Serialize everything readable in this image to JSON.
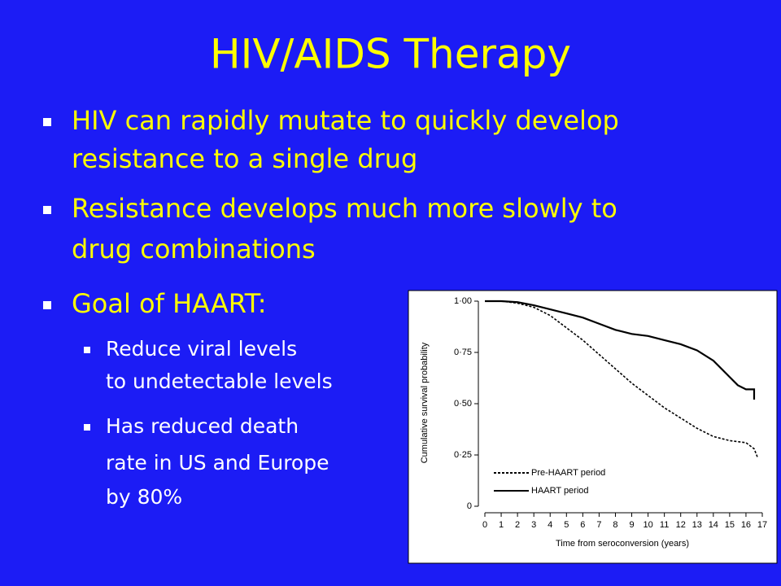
{
  "slide": {
    "title": "HIV/AIDS Therapy",
    "bullets": [
      {
        "lines": [
          "HIV can rapidly mutate to quickly develop",
          "resistance to a single drug"
        ]
      },
      {
        "lines": [
          "Resistance develops much more slowly to",
          "drug combinations"
        ]
      },
      {
        "lines": [
          "Goal of HAART:"
        ],
        "sub": [
          {
            "lines": [
              "Reduce viral levels",
              "to undetectable levels"
            ]
          },
          {
            "lines": [
              "Has reduced death",
              "rate in US and Europe",
              "by 80%"
            ]
          }
        ]
      }
    ]
  },
  "chart_data": {
    "type": "line",
    "xlabel": "Time from seroconversion (years)",
    "ylabel": "Cumulative survival probability",
    "xlim": [
      0,
      17
    ],
    "ylim": [
      0,
      1
    ],
    "xticks": [
      0,
      1,
      2,
      3,
      4,
      5,
      6,
      7,
      8,
      9,
      10,
      11,
      12,
      13,
      14,
      15,
      16,
      17
    ],
    "yticks": [
      0,
      {
        "value": 0.25,
        "label": "0·25"
      },
      {
        "value": 0.5,
        "label": "0·50"
      },
      {
        "value": 0.75,
        "label": "0·75"
      },
      {
        "value": 1,
        "label": "1·00"
      }
    ],
    "legend": "lower left",
    "series": [
      {
        "name": "Pre-HAART period",
        "color": "#000000",
        "dash": "dashed",
        "x": [
          0,
          1,
          2,
          3,
          4,
          5,
          6,
          7,
          8,
          9,
          10,
          11,
          12,
          13,
          14,
          15,
          16,
          16.5,
          16.7
        ],
        "values": [
          1.0,
          1.0,
          0.99,
          0.97,
          0.93,
          0.87,
          0.81,
          0.74,
          0.67,
          0.6,
          0.54,
          0.48,
          0.43,
          0.38,
          0.34,
          0.32,
          0.31,
          0.28,
          0.24
        ]
      },
      {
        "name": "HAART period",
        "color": "#000000",
        "dash": "solid",
        "x": [
          0,
          1,
          2,
          3,
          4,
          5,
          6,
          7,
          8,
          9,
          10,
          11,
          12,
          13,
          14,
          15,
          15.5,
          16,
          16.5,
          16.5
        ],
        "values": [
          1.0,
          1.0,
          0.995,
          0.98,
          0.96,
          0.94,
          0.92,
          0.89,
          0.86,
          0.84,
          0.83,
          0.81,
          0.79,
          0.76,
          0.71,
          0.63,
          0.59,
          0.57,
          0.57,
          0.52
        ]
      }
    ]
  }
}
